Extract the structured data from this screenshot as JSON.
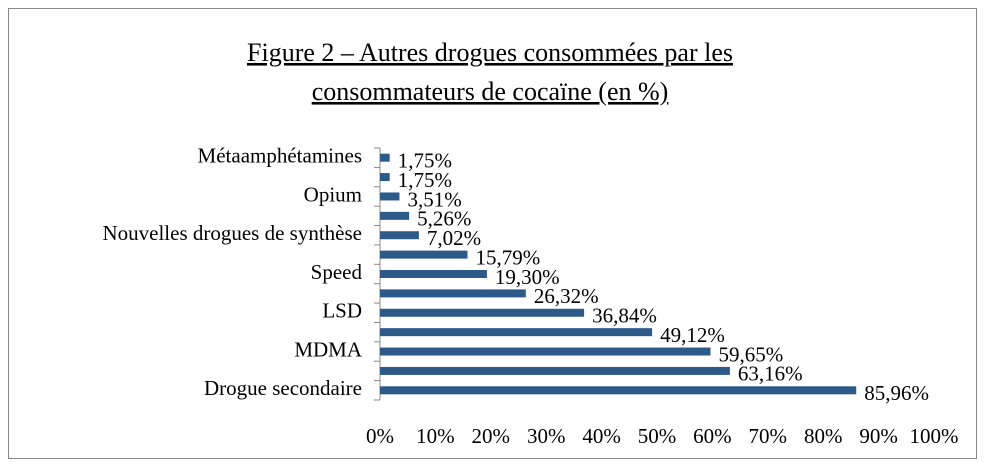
{
  "chart_data": {
    "type": "bar",
    "orientation": "horizontal",
    "title": [
      "Figure 2 – Autres drogues consommées par les",
      "consommateurs de cocaïne (en %)"
    ],
    "categories": [
      "Métaamphétamines",
      null,
      "Opium",
      null,
      "Nouvelles drogues de synthèse",
      null,
      "Speed",
      null,
      "LSD",
      null,
      "MDMA",
      null,
      "Drogue secondaire"
    ],
    "values": [
      1.75,
      1.75,
      3.51,
      5.26,
      7.02,
      15.79,
      19.3,
      26.32,
      36.84,
      49.12,
      59.65,
      63.16,
      85.96
    ],
    "value_labels": [
      "1,75%",
      "1,75%",
      "3,51%",
      "5,26%",
      "7,02%",
      "15,79%",
      "19,30%",
      "26,32%",
      "36,84%",
      "49,12%",
      "59,65%",
      "63,16%",
      "85,96%"
    ],
    "color": "#2e5a8a",
    "xlim": [
      0,
      100
    ],
    "xticks": [
      {
        "value": 0,
        "label": "0%"
      },
      {
        "value": 10,
        "label": "10%"
      },
      {
        "value": 20,
        "label": "20%"
      },
      {
        "value": 30,
        "label": "30%"
      },
      {
        "value": 40,
        "label": "40%"
      },
      {
        "value": 50,
        "label": "50%"
      },
      {
        "value": 60,
        "label": "60%"
      },
      {
        "value": 70,
        "label": "70%"
      },
      {
        "value": 80,
        "label": "80%"
      },
      {
        "value": 90,
        "label": "90%"
      },
      {
        "value": 100,
        "label": "100%"
      }
    ],
    "grid": false
  }
}
